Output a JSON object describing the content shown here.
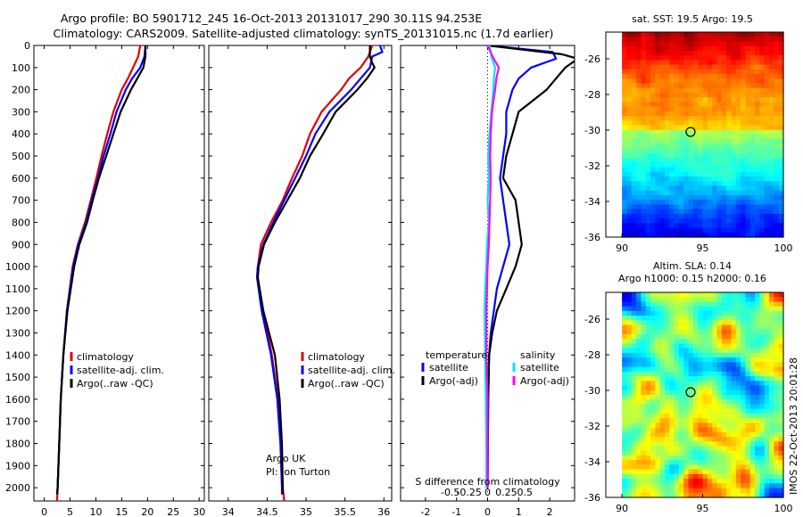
{
  "header": {
    "line1": "Argo profile: BO 5901712_245 16-Oct-2013 20131017_290 30.11S 94.253E",
    "line2": "Climatology: CARS2009. Satellite-adjusted climatology: synTS_20131015.nc (1.7d earlier)"
  },
  "colors": {
    "climatology": "#e00000",
    "satellite": "#0000ff",
    "argo": "#000000",
    "satellite_S": "#00e5ee",
    "argo_S": "#ff00ff"
  },
  "side_label": "IMOS 22-Oct-2013 20:01:28",
  "chart_data": [
    {
      "type": "line",
      "name": "temperature-panel",
      "xlabel": "temperature (deg C)",
      "ylabel": "",
      "xlim": [
        -2,
        31
      ],
      "ylim": [
        2060,
        0
      ],
      "y_reversed": true,
      "xticks": [
        0,
        5,
        10,
        15,
        20,
        25,
        30
      ],
      "yticks": [
        0,
        100,
        200,
        300,
        400,
        500,
        600,
        700,
        800,
        900,
        1000,
        1100,
        1200,
        1300,
        1400,
        1500,
        1600,
        1700,
        1800,
        1900,
        2000
      ],
      "legend": [
        "climatology",
        "satellite-adj. clim.",
        "Argo(..raw -QC)"
      ],
      "legend_position": "lower-right",
      "series": [
        {
          "name": "climatology",
          "color": "#e00000",
          "depth": [
            0,
            50,
            100,
            150,
            200,
            300,
            400,
            500,
            600,
            700,
            800,
            900,
            1000,
            1200,
            1400,
            1600,
            1800,
            2000,
            2060
          ],
          "values": [
            18.6,
            18.2,
            17.2,
            16.2,
            15.0,
            13.4,
            12.2,
            11.1,
            10.1,
            9.0,
            7.9,
            6.5,
            5.5,
            4.4,
            3.7,
            3.2,
            2.9,
            2.6,
            2.5
          ]
        },
        {
          "name": "satellite-adj. clim.",
          "color": "#0000ff",
          "depth": [
            0,
            50,
            100,
            150,
            200,
            300,
            400,
            500,
            600,
            700,
            800,
            900,
            1000,
            1200,
            1400,
            1600,
            1800,
            2000,
            2030
          ],
          "values": [
            19.6,
            19.4,
            18.6,
            17.0,
            15.8,
            14.0,
            12.8,
            11.5,
            10.4,
            9.2,
            8.1,
            6.6,
            5.6,
            4.4,
            3.7,
            3.2,
            2.9,
            2.6,
            2.5
          ]
        },
        {
          "name": "Argo(..raw -QC)",
          "color": "#000000",
          "depth": [
            0,
            50,
            100,
            150,
            200,
            300,
            400,
            500,
            600,
            700,
            800,
            900,
            1000,
            1200,
            1400,
            1600,
            1800,
            2000,
            2030
          ],
          "values": [
            19.6,
            19.6,
            19.2,
            18.0,
            16.8,
            14.8,
            13.4,
            12.0,
            10.6,
            9.4,
            8.3,
            6.8,
            5.8,
            4.5,
            3.7,
            3.2,
            2.9,
            2.6,
            2.5
          ]
        }
      ]
    },
    {
      "type": "line",
      "name": "salinity-panel",
      "xlabel": "salinity",
      "xlim": [
        33.75,
        36.1
      ],
      "ylim": [
        2060,
        0
      ],
      "y_reversed": true,
      "xticks": [
        34,
        34.5,
        35,
        35.5,
        36
      ],
      "legend": [
        "climatology",
        "satellite-adj. clim.",
        "Argo(..raw -QC)"
      ],
      "legend_position": "lower-right",
      "annotation": [
        "Argo UK",
        "PI: Jon Turton"
      ],
      "series": [
        {
          "name": "climatology",
          "color": "#e00000",
          "depth": [
            0,
            50,
            100,
            150,
            200,
            300,
            400,
            500,
            600,
            700,
            800,
            900,
            1000,
            1050,
            1200,
            1400,
            1600,
            1800,
            2000,
            2060
          ],
          "values": [
            35.85,
            35.8,
            35.7,
            35.55,
            35.45,
            35.2,
            35.05,
            34.95,
            34.82,
            34.7,
            34.55,
            34.42,
            34.38,
            34.37,
            34.45,
            34.56,
            34.64,
            34.68,
            34.7,
            34.72
          ]
        },
        {
          "name": "satellite-adj. clim.",
          "color": "#0000ff",
          "depth": [
            0,
            30,
            50,
            100,
            150,
            200,
            300,
            400,
            500,
            600,
            700,
            800,
            900,
            1000,
            1050,
            1200,
            1400,
            1600,
            1800,
            2000,
            2030
          ],
          "values": [
            35.95,
            35.98,
            35.85,
            35.82,
            35.7,
            35.58,
            35.3,
            35.12,
            35.0,
            34.86,
            34.72,
            34.58,
            34.45,
            34.38,
            34.37,
            34.43,
            34.55,
            34.63,
            34.67,
            34.69,
            34.69
          ]
        },
        {
          "name": "Argo(..raw -QC)",
          "color": "#000000",
          "depth": [
            0,
            50,
            80,
            100,
            150,
            200,
            300,
            400,
            500,
            600,
            700,
            800,
            900,
            1000,
            1050,
            1200,
            1400,
            1600,
            1800,
            2000,
            2030
          ],
          "values": [
            35.82,
            35.82,
            35.85,
            35.88,
            35.78,
            35.66,
            35.38,
            35.22,
            35.05,
            34.92,
            34.76,
            34.6,
            34.46,
            34.39,
            34.38,
            34.45,
            34.6,
            34.66,
            34.69,
            34.7,
            34.7
          ]
        }
      ]
    },
    {
      "type": "line",
      "name": "difference-panel",
      "xlabel": "T difference from climatology",
      "xlabel2": "S difference from climatology",
      "xlim": [
        -2.8,
        2.8
      ],
      "ylim": [
        2060,
        0
      ],
      "y_reversed": true,
      "xticks": [
        -2,
        -1,
        0,
        1,
        2
      ],
      "xticks_S": [
        -0.5,
        -0.25,
        0,
        0.25,
        0.5
      ],
      "xticks_S_labels": [
        "-0.5",
        "-0.25",
        "0",
        "0.25",
        "0.5"
      ],
      "legend_groups": [
        {
          "title": "temperature",
          "items": [
            "satellite",
            "Argo(-adj)"
          ]
        },
        {
          "title": "salinity",
          "items": [
            "satellite",
            "Argo(-adj)"
          ]
        }
      ],
      "series": [
        {
          "name": "T satellite",
          "color": "#0000ff",
          "depth": [
            0,
            30,
            60,
            100,
            150,
            200,
            300,
            400,
            500,
            600,
            700,
            800,
            900,
            1000,
            1100,
            1200,
            1300,
            1400,
            1600,
            1800,
            2000
          ],
          "values": [
            0.0,
            2.1,
            2.2,
            1.4,
            1.0,
            0.8,
            0.6,
            0.6,
            0.5,
            0.4,
            0.5,
            0.6,
            0.7,
            0.5,
            0.3,
            0.2,
            0.1,
            0.05,
            0.02,
            0.01,
            0.0
          ]
        },
        {
          "name": "T Argo(-adj)",
          "color": "#000000",
          "depth": [
            0,
            40,
            60,
            100,
            150,
            200,
            300,
            400,
            500,
            600,
            700,
            800,
            900,
            1000,
            1100,
            1200,
            1300,
            1400,
            1600,
            1800,
            2000
          ],
          "values": [
            0.0,
            2.4,
            2.9,
            2.5,
            2.2,
            1.9,
            1.0,
            0.8,
            0.6,
            0.5,
            0.9,
            1.0,
            1.1,
            0.9,
            0.6,
            0.3,
            0.15,
            0.05,
            0.02,
            0.01,
            0.0
          ]
        },
        {
          "name": "S satellite",
          "color": "#00e5ee",
          "depth": [
            0,
            50,
            100,
            150,
            200,
            300,
            400,
            500,
            600,
            700,
            800,
            900,
            1000,
            1100,
            1200,
            1400,
            1600,
            1800,
            2000
          ],
          "values": [
            0.03,
            0.06,
            0.12,
            0.1,
            0.09,
            0.06,
            0.03,
            0.01,
            0.02,
            0.0,
            0.02,
            -0.01,
            -0.02,
            -0.04,
            -0.05,
            -0.04,
            -0.03,
            -0.02,
            -0.02
          ]
        },
        {
          "name": "S Argo(-adj)",
          "color": "#ff00ff",
          "depth": [
            0,
            50,
            100,
            150,
            200,
            300,
            400,
            500,
            600,
            700,
            800,
            900,
            1000,
            1100,
            1200,
            1400,
            1600,
            1800,
            2000
          ],
          "values": [
            0.0,
            0.08,
            0.18,
            0.14,
            0.12,
            0.07,
            0.05,
            0.04,
            0.05,
            0.04,
            0.03,
            0.02,
            0.0,
            -0.01,
            -0.02,
            -0.02,
            0.0,
            0.0,
            0.0
          ]
        }
      ]
    },
    {
      "type": "heatmap",
      "name": "sst-map",
      "title": "sat. SST: 19.5  Argo: 19.5",
      "xlim": [
        89,
        100
      ],
      "ylim": [
        -36,
        -24.5
      ],
      "xticks": [
        90,
        95,
        100
      ],
      "yticks": [
        -26,
        -28,
        -30,
        -32,
        -34,
        -36
      ],
      "marker": {
        "lon": 94.25,
        "lat": -30.1
      }
    },
    {
      "type": "heatmap",
      "name": "sla-map",
      "title": "Altim. SLA: 0.14",
      "title2": "Argo h1000: 0.15 h2000: 0.16",
      "xlim": [
        89,
        100
      ],
      "ylim": [
        -36,
        -24.5
      ],
      "xticks": [
        90,
        95,
        100
      ],
      "yticks": [
        -26,
        -28,
        -30,
        -32,
        -34,
        -36
      ],
      "marker": {
        "lon": 94.25,
        "lat": -30.1
      }
    }
  ]
}
